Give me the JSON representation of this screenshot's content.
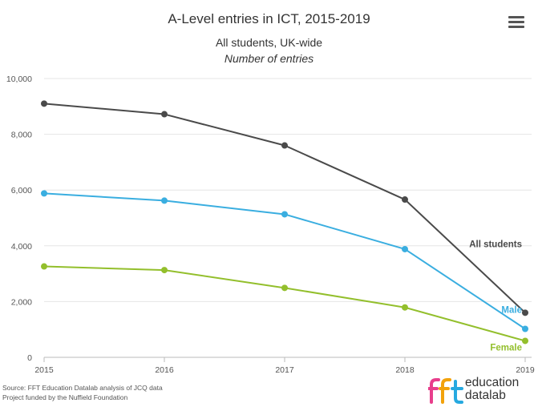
{
  "menu": {
    "icon": "hamburger-menu-icon"
  },
  "footer": {
    "source": "Source: FFT Education Datalab analysis of JCQ data",
    "funding": "Project funded by the Nuffield Foundation"
  },
  "logo": {
    "mark": "fft",
    "line1": "education",
    "line2": "datalab",
    "colors": {
      "f1": "#e83e8c",
      "f2": "#f2a20b",
      "t": "#26a9e0"
    }
  },
  "chart_data": {
    "type": "line",
    "title": "A-Level entries in ICT, 2015-2019",
    "subtitle": "All students, UK-wide",
    "subtitle2": "Number of entries",
    "x": [
      "2015",
      "2016",
      "2017",
      "2018",
      "2019"
    ],
    "yticks": [
      "0",
      "2,000",
      "4,000",
      "6,000",
      "8,000",
      "10,000"
    ],
    "ylim": [
      0,
      10000
    ],
    "grid": true,
    "legend": "inline labels at line ends",
    "series": [
      {
        "name": "All students",
        "color": "#4a4a4a",
        "values": [
          9100,
          8720,
          7600,
          5660,
          1600
        ]
      },
      {
        "name": "Male",
        "color": "#3aaee0",
        "values": [
          5880,
          5620,
          5130,
          3880,
          1020
        ]
      },
      {
        "name": "Female",
        "color": "#93bf2c",
        "values": [
          3260,
          3130,
          2490,
          1790,
          590
        ]
      }
    ]
  }
}
